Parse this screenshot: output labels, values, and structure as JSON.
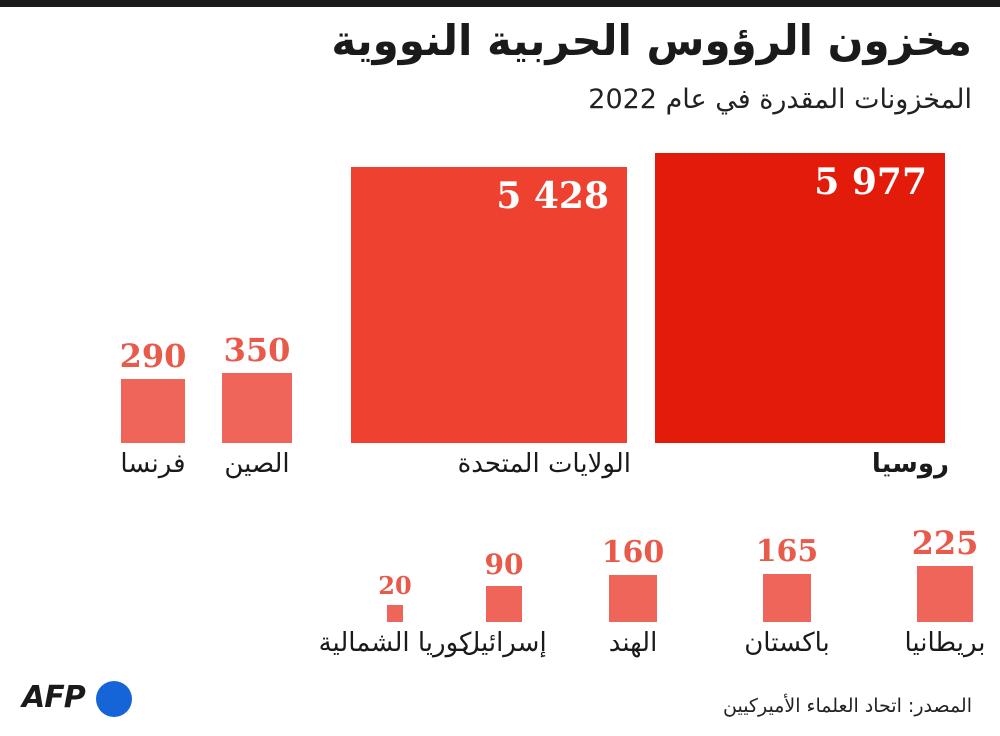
{
  "chart_data": {
    "type": "proportional-squares",
    "title": "مخزون الرؤوس الحربية النووية",
    "subtitle": "المخزونات المقدرة في عام 2022",
    "categories": [
      "روسيا",
      "الولايات المتحدة",
      "الصين",
      "فرنسا",
      "بريطانيا",
      "باكستان",
      "الهند",
      "إسرائيل",
      "كوريا الشمالية"
    ],
    "values": [
      5977,
      5428,
      350,
      290,
      225,
      165,
      160,
      90,
      20
    ],
    "value_labels": [
      "5 977",
      "5 428",
      "350",
      "290",
      "225",
      "165",
      "160",
      "90",
      "20"
    ],
    "colors": {
      "russia": "#e31b0b",
      "usa": "#ee4130",
      "others": "#f0655a",
      "value_text": "#e85a4a",
      "logo_dot": "#1565d8"
    }
  },
  "source": "المصدر: اتحاد العلماء الأميركيين",
  "logo": "AFP"
}
